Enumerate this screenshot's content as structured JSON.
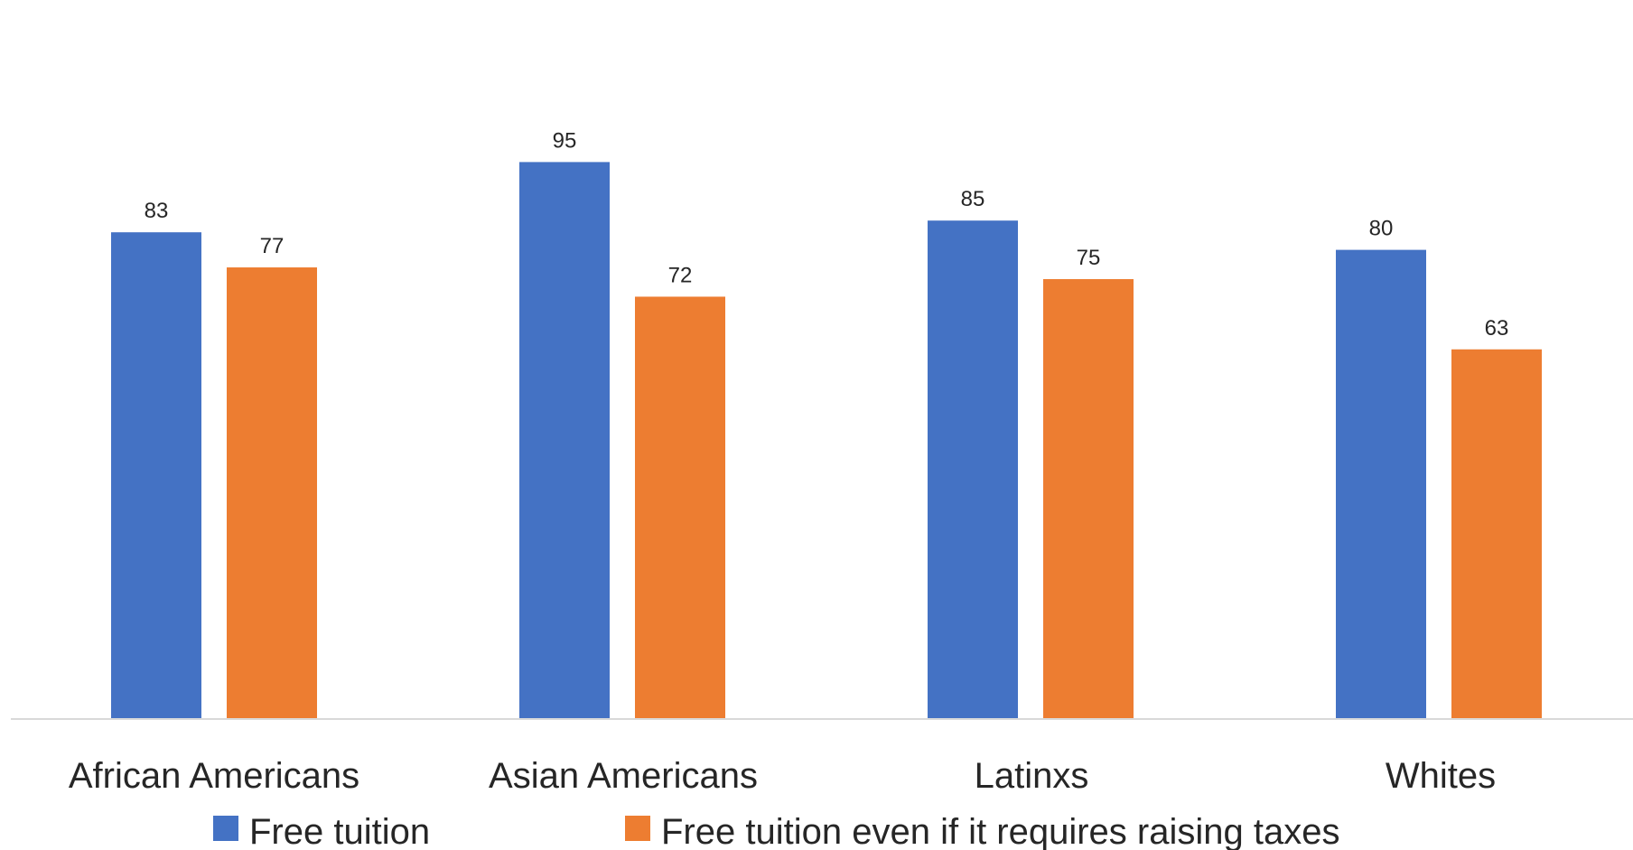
{
  "chart_data": {
    "type": "bar",
    "title": "",
    "xlabel": "",
    "ylabel": "",
    "ylim": [
      0,
      100
    ],
    "grid": false,
    "legend_position": "bottom",
    "categories": [
      "African Americans",
      "Asian Americans",
      "Latinxs",
      "Whites"
    ],
    "series": [
      {
        "name": "Free tuition",
        "color": "#4472C4",
        "values": [
          83,
          95,
          85,
          80
        ]
      },
      {
        "name": "Free tuition even if it requires raising taxes",
        "color": "#ED7D31",
        "values": [
          77,
          72,
          75,
          63
        ]
      }
    ]
  }
}
